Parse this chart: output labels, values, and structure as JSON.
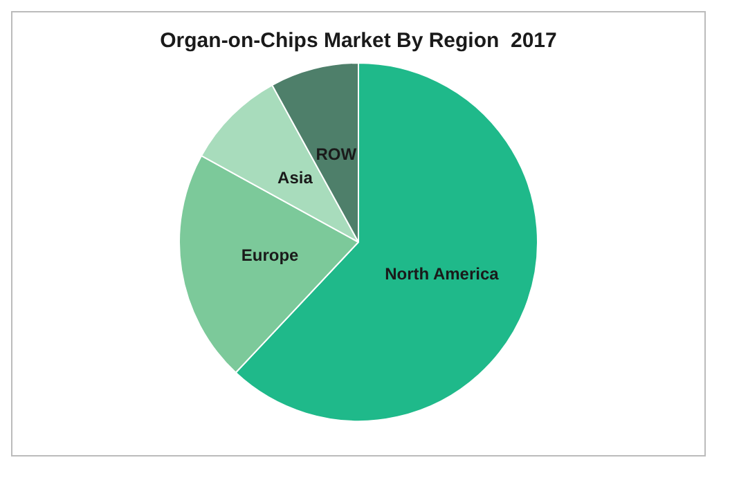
{
  "chart_data": {
    "type": "pie",
    "title": "Organ-on-Chips Market By Region  2017",
    "categories": [
      "North America",
      "Europe",
      "Asia",
      "ROW"
    ],
    "values": [
      62,
      21,
      9,
      8
    ],
    "colors": [
      "#1fb98a",
      "#7cc99a",
      "#a8dcbc",
      "#4e7f6a"
    ],
    "legend": false
  }
}
